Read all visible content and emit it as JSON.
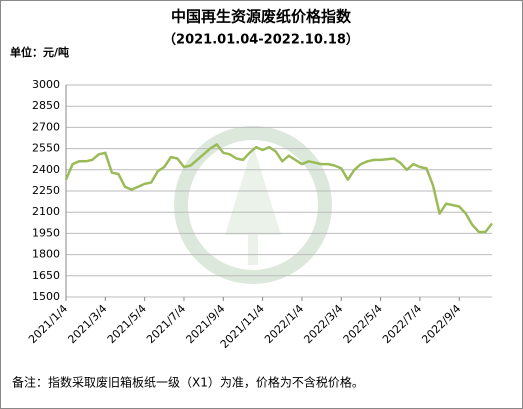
{
  "chart_data": {
    "type": "line",
    "title": "中国再生资源废纸价格指数",
    "subtitle": "（2021.01.04-2022.10.18）",
    "unit_label": "单位：元/吨",
    "note": "备注：指数采取废旧箱板纸一级（X1）为准，价格为不含税价格。",
    "categories": [
      "2021/1/4",
      null,
      null,
      null,
      null,
      null,
      "2021/3/4",
      null,
      null,
      null,
      null,
      null,
      "2021/5/4",
      null,
      null,
      null,
      null,
      null,
      "2021/7/4",
      null,
      null,
      null,
      null,
      null,
      "2021/9/4",
      null,
      null,
      null,
      null,
      null,
      "2021/11/4",
      null,
      null,
      null,
      null,
      null,
      "2022/1/4",
      null,
      null,
      null,
      null,
      null,
      "2022/3/4",
      null,
      null,
      null,
      null,
      null,
      "2022/5/4",
      null,
      null,
      null,
      null,
      null,
      "2022/7/4",
      null,
      null,
      null,
      null,
      null,
      "2022/9/4",
      null,
      null,
      null,
      null,
      null
    ],
    "series": [
      {
        "color": "#9bbb59",
        "values": [
          2330,
          2440,
          2460,
          2460,
          2470,
          2510,
          2520,
          2380,
          2370,
          2280,
          2260,
          2280,
          2300,
          2310,
          2390,
          2420,
          2490,
          2480,
          2420,
          2430,
          2470,
          2510,
          2550,
          2580,
          2520,
          2510,
          2480,
          2470,
          2520,
          2560,
          2540,
          2560,
          2530,
          2460,
          2500,
          2470,
          2440,
          2460,
          2450,
          2440,
          2440,
          2430,
          2410,
          2330,
          2400,
          2440,
          2460,
          2470,
          2470,
          2475,
          2480,
          2450,
          2400,
          2440,
          2420,
          2410,
          2290,
          2090,
          2160,
          2150,
          2140,
          2090,
          2010,
          1960,
          1960,
          2020
        ]
      }
    ],
    "ylim": [
      1500,
      3000
    ],
    "yticks": [
      1500,
      1650,
      1800,
      1950,
      2100,
      2250,
      2400,
      2550,
      2700,
      2850,
      3000
    ],
    "grid": true
  }
}
